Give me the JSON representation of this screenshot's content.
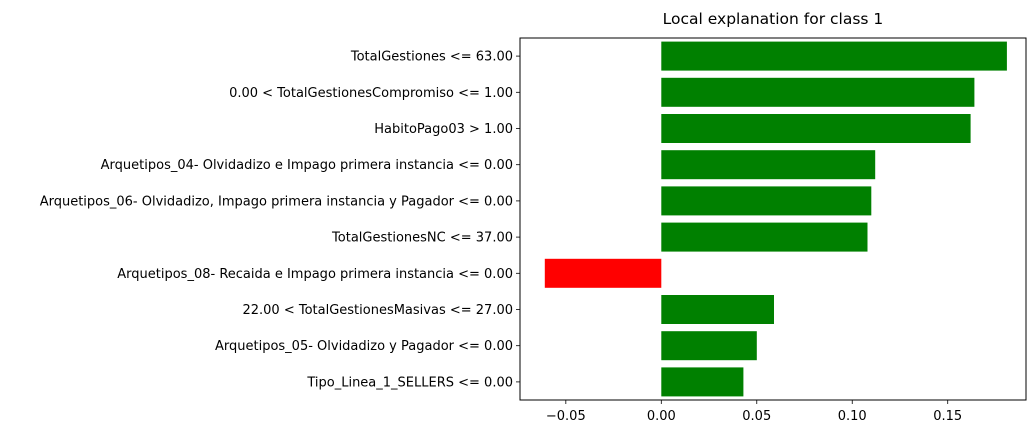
{
  "chart_data": {
    "type": "bar",
    "orientation": "horizontal",
    "title": "Local explanation for class 1",
    "xlabel": "",
    "ylabel": "",
    "categories": [
      "TotalGestiones <= 63.00",
      "0.00 < TotalGestionesCompromiso <= 1.00",
      "HabitoPago03 > 1.00",
      "Arquetipos_04- Olvidadizo e Impago primera instancia <= 0.00",
      "Arquetipos_06- Olvidadizo, Impago primera instancia y Pagador <= 0.00",
      "TotalGestionesNC <= 37.00",
      "Arquetipos_08- Recaida e Impago primera instancia <= 0.00",
      "22.00 < TotalGestionesMasivas <= 27.00",
      "Arquetipos_05- Olvidadizo y Pagador <= 0.00",
      "Tipo_Linea_1_SELLERS <= 0.00"
    ],
    "values": [
      0.181,
      0.164,
      0.162,
      0.112,
      0.11,
      0.108,
      -0.061,
      0.059,
      0.05,
      0.043
    ],
    "xlim": [
      -0.074,
      0.191
    ],
    "xticks": [
      -0.05,
      0.0,
      0.05,
      0.1,
      0.15
    ],
    "xtick_labels": [
      "−0.05",
      "0.00",
      "0.05",
      "0.10",
      "0.15"
    ],
    "positive_color": "#008000",
    "negative_color": "#ff0000",
    "grid": false,
    "legend": "none"
  }
}
